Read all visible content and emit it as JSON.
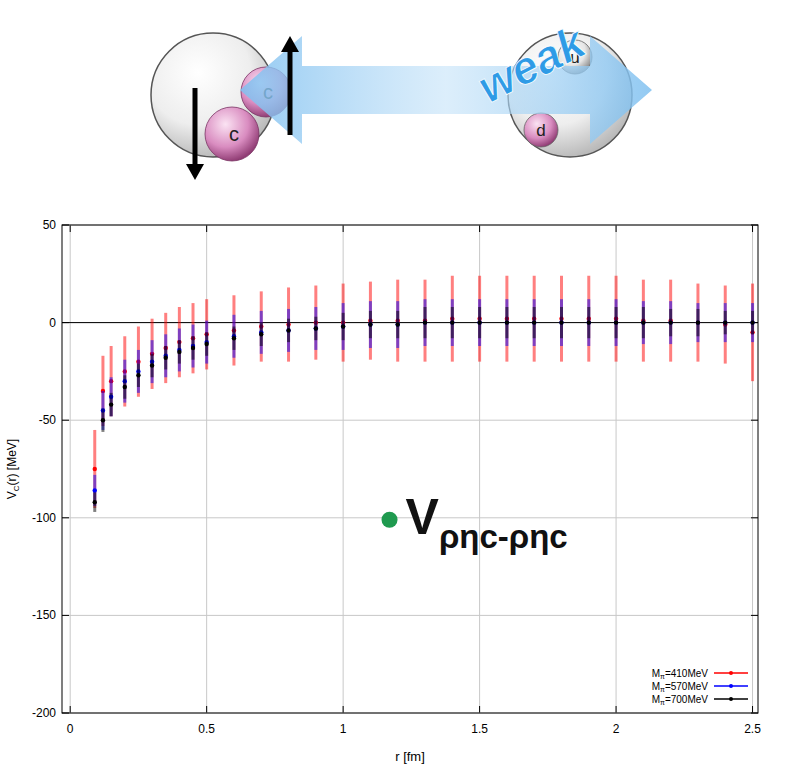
{
  "diagram": {
    "left_particle": [
      "c",
      "c"
    ],
    "right_particle": [
      "u",
      "d"
    ],
    "arrow_label": "weak"
  },
  "chart_data": {
    "type": "scatter",
    "x_label": "r [fm]",
    "y_label": [
      {
        "t": "V"
      },
      {
        "t": "C",
        "sub": true
      },
      {
        "t": "(r) [MeV]"
      }
    ],
    "annotation": {
      "parts": [
        {
          "t": "V"
        },
        {
          "t": "ρηc-ρηc",
          "sub": true
        }
      ],
      "x": 1.17,
      "y": -101,
      "color": "#1f9a4f"
    },
    "xlim": [
      -0.03,
      2.52
    ],
    "ylim": [
      -200,
      50
    ],
    "xticks": [
      0,
      0.5,
      1,
      1.5,
      2,
      2.5
    ],
    "yticks": [
      -200,
      -150,
      -100,
      -50,
      0,
      50
    ],
    "grid": true,
    "legend": "lower right",
    "x": [
      0.09,
      0.12,
      0.15,
      0.2,
      0.25,
      0.3,
      0.35,
      0.4,
      0.45,
      0.5,
      0.6,
      0.7,
      0.8,
      0.9,
      1.0,
      1.1,
      1.2,
      1.3,
      1.4,
      1.5,
      1.6,
      1.7,
      1.8,
      1.9,
      2.0,
      2.1,
      2.2,
      2.3,
      2.4,
      2.5
    ],
    "series": [
      {
        "name": "Mπ=410MeV",
        "color": "#ff0000",
        "marker": "circle",
        "values": [
          -75,
          -35,
          -30,
          -25,
          -20,
          -16,
          -13,
          -10,
          -8,
          -6,
          -4,
          -2,
          -1,
          0,
          0,
          1,
          1,
          1,
          2,
          2,
          2,
          2,
          2,
          2,
          2,
          1,
          1,
          0,
          -1,
          -5
        ],
        "errors": [
          20,
          18,
          18,
          18,
          18,
          18,
          18,
          18,
          18,
          18,
          18,
          18,
          19,
          19,
          20,
          20,
          21,
          21,
          22,
          22,
          22,
          22,
          22,
          22,
          22,
          21,
          21,
          20,
          20,
          25
        ]
      },
      {
        "name": "Mπ=570MeV",
        "color": "#0000ff",
        "marker": "circle",
        "values": [
          -86,
          -45,
          -38,
          -30,
          -25,
          -20,
          -17,
          -14,
          -12,
          -10,
          -7,
          -5,
          -4,
          -3,
          -2,
          -1,
          -1,
          0,
          0,
          0,
          0,
          0,
          0,
          0,
          0,
          0,
          0,
          0,
          0,
          0
        ],
        "errors": [
          8,
          10,
          10,
          11,
          11,
          11,
          11,
          11,
          11,
          11,
          11,
          11,
          11,
          11,
          12,
          12,
          12,
          12,
          12,
          12,
          12,
          12,
          12,
          12,
          12,
          11,
          11,
          10,
          10,
          10
        ]
      },
      {
        "name": "Mπ=700MeV",
        "color": "#000000",
        "marker": "circle",
        "values": [
          -92,
          -50,
          -42,
          -33,
          -27,
          -22,
          -18,
          -15,
          -13,
          -11,
          -8,
          -6,
          -4,
          -3,
          -2,
          -1,
          -1,
          0,
          0,
          0,
          0,
          0,
          0,
          0,
          0,
          0,
          0,
          0,
          0,
          0
        ],
        "errors": [
          5,
          6,
          6,
          6,
          6,
          6,
          6,
          6,
          6,
          6,
          6,
          6,
          6,
          6,
          7,
          7,
          7,
          8,
          8,
          8,
          8,
          8,
          8,
          8,
          8,
          8,
          7,
          7,
          6,
          6
        ]
      }
    ]
  }
}
